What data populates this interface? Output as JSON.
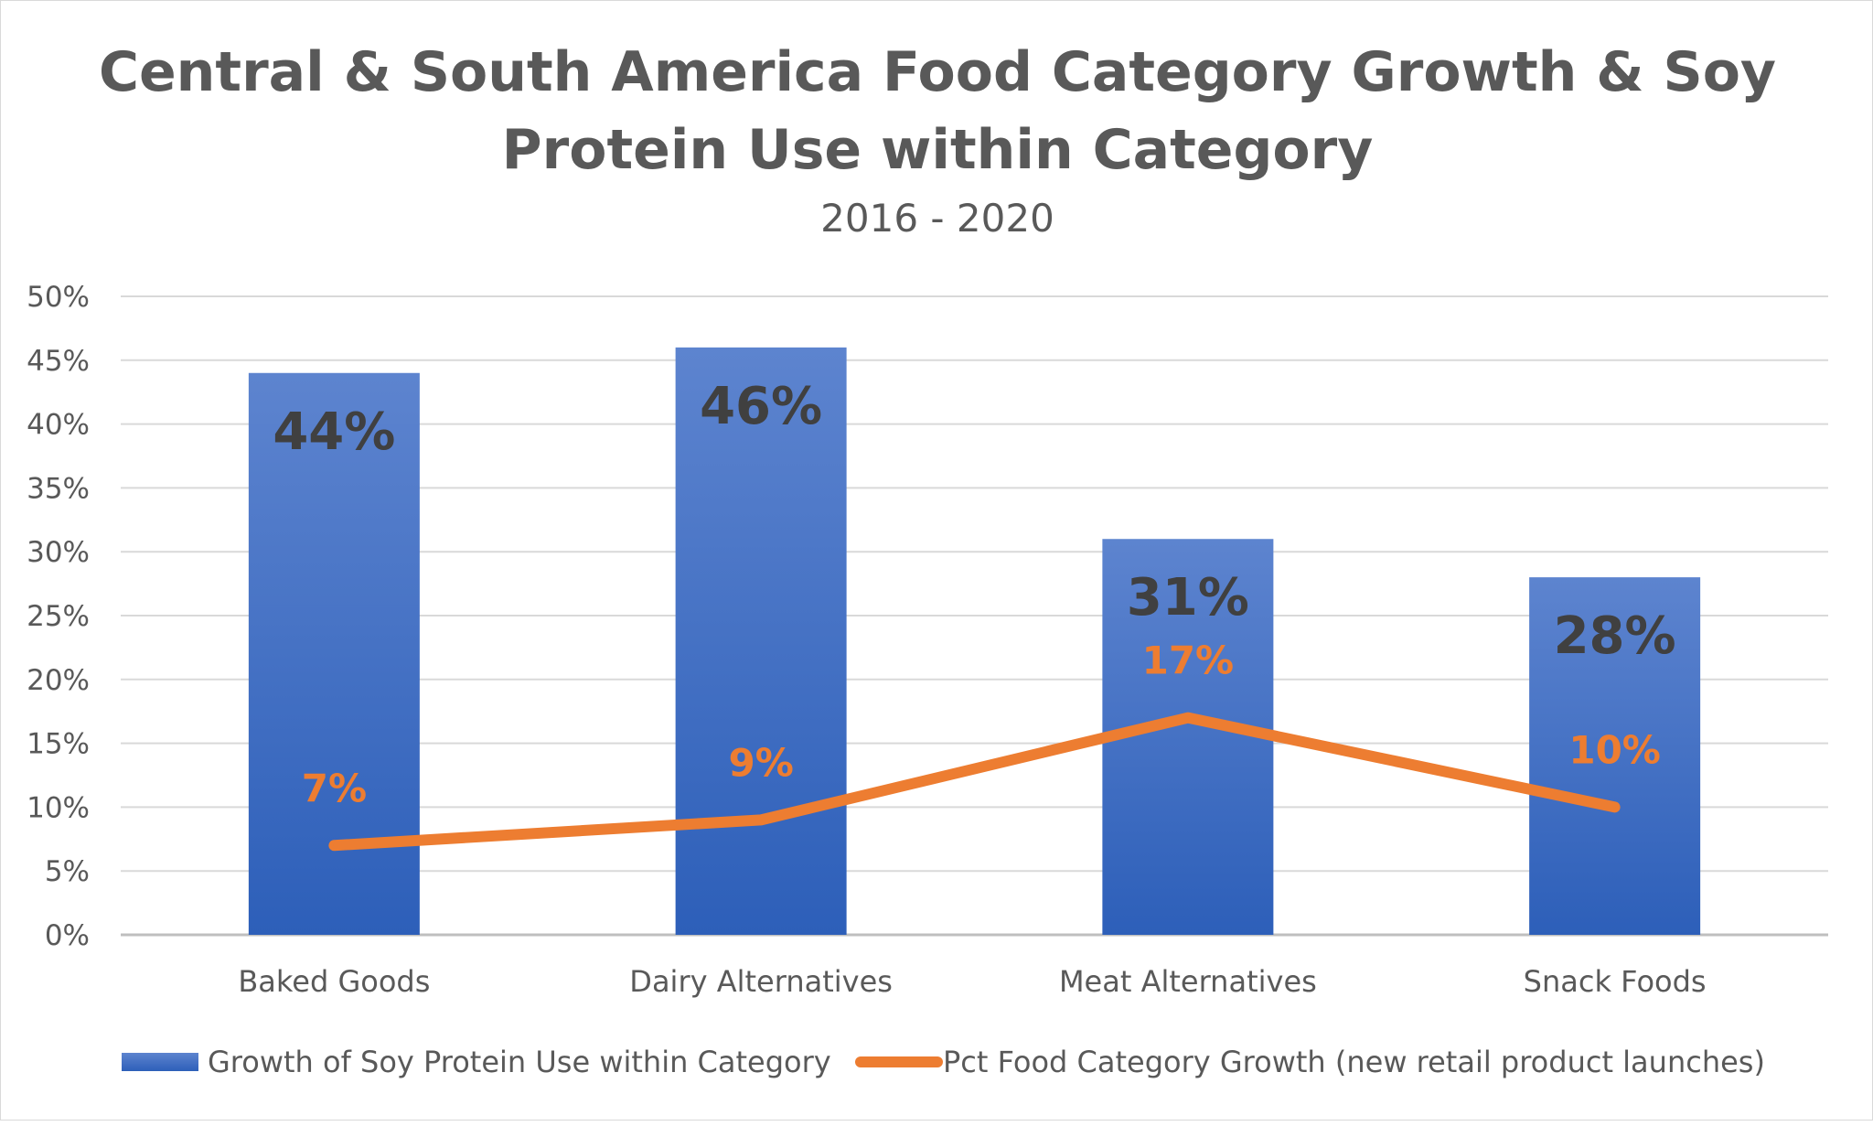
{
  "chart_data": {
    "type": "bar+line",
    "title_line1": "Central & South America Food Category Growth & Soy",
    "title_line2": "Protein Use within Category",
    "subtitle": "2016 - 2020",
    "categories": [
      "Baked Goods",
      "Dairy Alternatives",
      "Meat Alternatives",
      "Snack Foods"
    ],
    "series": [
      {
        "name": "Growth of Soy Protein Use within Category",
        "type": "bar",
        "color": "#4472c4",
        "values": [
          44,
          46,
          31,
          28
        ],
        "labels": [
          "44%",
          "46%",
          "31%",
          "28%"
        ]
      },
      {
        "name": "Pct Food Category Growth (new retail product launches)",
        "type": "line",
        "color": "#ed7d31",
        "values": [
          7,
          9,
          17,
          10
        ],
        "labels": [
          "7%",
          "9%",
          "17%",
          "10%"
        ]
      }
    ],
    "yticks": [
      "0%",
      "5%",
      "10%",
      "15%",
      "20%",
      "25%",
      "30%",
      "35%",
      "40%",
      "45%",
      "50%"
    ],
    "ylim": [
      0,
      50
    ],
    "xlabel": "",
    "ylabel": "",
    "grid": true,
    "legend": "bottom"
  }
}
